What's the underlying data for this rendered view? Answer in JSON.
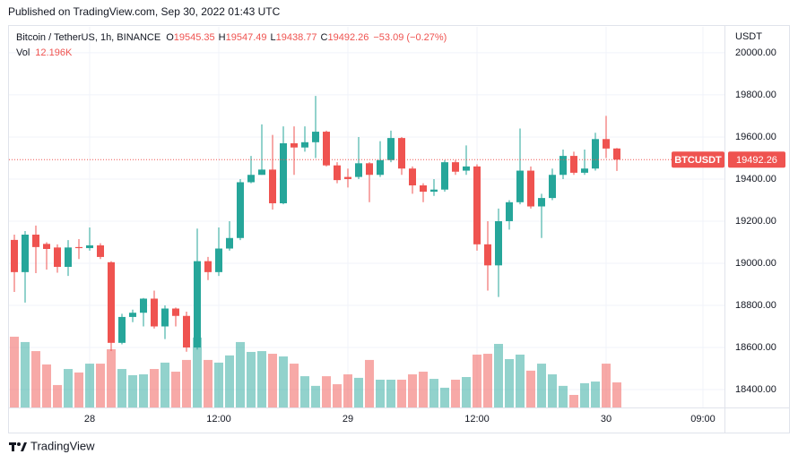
{
  "header": {
    "published": "Published on TradingView.com, Sep 30, 2022 01:43 UTC"
  },
  "chart_data": {
    "type": "candlestick",
    "symbol": "Bitcoin / TetherUS, 1h, BINANCE",
    "ohlc_labels": [
      "O",
      "H",
      "L",
      "C"
    ],
    "change": "−53.09 (−0.27%)",
    "currency": "USDT",
    "ticker": "BTCUSDT",
    "up_color": "#26a69a",
    "down_color": "#ef5350",
    "x": [
      -7,
      -6,
      -5,
      -4,
      -3,
      -2,
      -1,
      0,
      1,
      2,
      3,
      4,
      5,
      6,
      7,
      8,
      9,
      10,
      11,
      12,
      13,
      14,
      15,
      16,
      17,
      18,
      19,
      20,
      21,
      22,
      23,
      24,
      25,
      26,
      27,
      28,
      29,
      30,
      31,
      32,
      33,
      34,
      35,
      36,
      37,
      38,
      39,
      40,
      41,
      42,
      43,
      44,
      45,
      46,
      47,
      48,
      49
    ],
    "open": [
      19111,
      18958,
      19136,
      19092,
      19075,
      18983,
      19077,
      19072,
      19085,
      19005,
      18622,
      18745,
      18765,
      18832,
      18700,
      18785,
      18750,
      18600,
      19010,
      18958,
      19070,
      19120,
      19385,
      19420,
      19445,
      19285,
      19570,
      19550,
      19575,
      19625,
      19465,
      19410,
      19410,
      19475,
      19420,
      19490,
      19595,
      19450,
      19370,
      19340,
      19350,
      19480,
      19440,
      19460,
      19090,
      18990,
      19200,
      19290,
      19440,
      19270,
      19310,
      19420,
      19510,
      19430,
      19450,
      19590,
      19545.35
    ],
    "high": [
      19136,
      19153,
      19179,
      19100,
      19090,
      19110,
      19115,
      19170,
      19095,
      19010,
      18760,
      18780,
      18835,
      18870,
      18800,
      18790,
      18770,
      19165,
      19030,
      19170,
      19200,
      19400,
      19510,
      19660,
      19610,
      19650,
      19650,
      19650,
      19795,
      19630,
      19480,
      19450,
      19600,
      19480,
      19580,
      19630,
      19600,
      19460,
      19380,
      19400,
      19490,
      19490,
      19560,
      19470,
      19200,
      19260,
      19300,
      19640,
      19460,
      19330,
      19450,
      19540,
      19530,
      19540,
      19620,
      19700,
      19547.49
    ],
    "low": [
      18864,
      18813,
      18953,
      18970,
      18955,
      18940,
      19020,
      19060,
      19020,
      18583,
      18615,
      18720,
      18700,
      18690,
      18640,
      18700,
      18580,
      18590,
      18920,
      18940,
      19060,
      19110,
      19380,
      19420,
      19255,
      19280,
      19420,
      19530,
      19500,
      19460,
      19380,
      19360,
      19400,
      19290,
      19410,
      19480,
      19420,
      19330,
      19290,
      19320,
      19340,
      19420,
      19420,
      19060,
      18870,
      18840,
      19160,
      19280,
      19260,
      19120,
      19300,
      19400,
      19420,
      19420,
      19440,
      19500,
      19438.77
    ],
    "close": [
      18958,
      19136,
      19077,
      19068,
      18983,
      19075,
      19072,
      19085,
      19030,
      18622,
      18745,
      18765,
      18832,
      18700,
      18785,
      18750,
      18600,
      19010,
      18958,
      19070,
      19120,
      19385,
      19420,
      19445,
      19285,
      19570,
      19550,
      19575,
      19625,
      19465,
      19395,
      19400,
      19475,
      19420,
      19490,
      19595,
      19450,
      19370,
      19340,
      19350,
      19480,
      19435,
      19460,
      19090,
      18990,
      19200,
      19290,
      19440,
      19270,
      19310,
      19420,
      19510,
      19430,
      19450,
      19590,
      19545,
      19492.26
    ],
    "volume": {
      "name": "Vol",
      "last_label": "12.196K",
      "values": [
        34400,
        31800,
        27400,
        20900,
        10900,
        18700,
        17000,
        21300,
        21300,
        28300,
        18700,
        15700,
        16100,
        18700,
        21800,
        17400,
        23100,
        34000,
        23100,
        21800,
        25300,
        31800,
        27000,
        27400,
        26100,
        24800,
        21300,
        15200,
        10500,
        15200,
        11300,
        16100,
        14400,
        23100,
        13500,
        13500,
        13500,
        16100,
        17400,
        13900,
        9600,
        13500,
        14800,
        25700,
        26100,
        30900,
        23500,
        25700,
        17900,
        21300,
        16100,
        10500,
        6100,
        11800,
        12600,
        21300,
        12196
      ]
    },
    "volume_ylim": [
      0,
      185000
    ],
    "ylim": [
      18315,
      20123
    ],
    "yticks": [
      {
        "value": 18400,
        "label": "18400.00"
      },
      {
        "value": 18600,
        "label": "18600.00"
      },
      {
        "value": 18800,
        "label": "18800.00"
      },
      {
        "value": 19000,
        "label": "19000.00"
      },
      {
        "value": 19200,
        "label": "19200.00"
      },
      {
        "value": 19400,
        "label": "19400.00"
      },
      {
        "value": 19600,
        "label": "19600.00"
      },
      {
        "value": 19800,
        "label": "19800.00"
      },
      {
        "value": 20000,
        "label": "20000.00"
      }
    ],
    "xlim": [
      -7.5,
      59
    ],
    "xticks": [
      {
        "value": 0,
        "label": "28"
      },
      {
        "value": 12,
        "label": "12:00"
      },
      {
        "value": 24,
        "label": "29"
      },
      {
        "value": 36,
        "label": "12:00"
      },
      {
        "value": 48,
        "label": "30"
      },
      {
        "value": 57,
        "label": "09:00"
      }
    ],
    "grid": true
  },
  "footer": {
    "brand": "TradingView"
  }
}
